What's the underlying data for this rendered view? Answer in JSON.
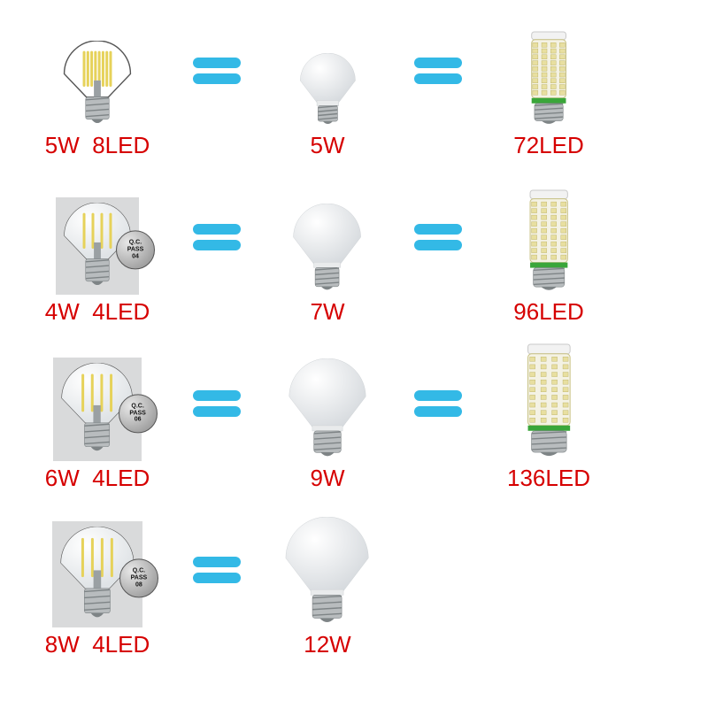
{
  "colors": {
    "label": "#d60000",
    "equals_bar": "#33b9e6",
    "bulb_glass": "#f5f6f7",
    "bulb_shadow": "#d5d9dd",
    "screw_base": "#b8bcbe",
    "screw_dark": "#7e8486",
    "filament": "#e6d25a",
    "corn_body": "#f4f2e4",
    "corn_chip": "#e8dfa0",
    "corn_base_green": "#3aa63a",
    "photo_bg": "#d9dadb"
  },
  "qc": {
    "line1": "Q.C.",
    "line2": "PASS"
  },
  "rows": [
    {
      "filament": {
        "label": "5W  8LED",
        "photo": false,
        "led_count": 8,
        "bulb_h": 120,
        "qc": null
      },
      "standard": {
        "label": "5W",
        "bulb_h": 90
      },
      "corn": {
        "label": "72LED",
        "bulb_h": 110
      }
    },
    {
      "filament": {
        "label": "4W  4LED",
        "photo": true,
        "led_count": 4,
        "bulb_h": 120,
        "qc": "04"
      },
      "standard": {
        "label": "7W",
        "bulb_h": 110
      },
      "corn": {
        "label": "96LED",
        "bulb_h": 120
      }
    },
    {
      "filament": {
        "label": "6W  4LED",
        "photo": true,
        "led_count": 4,
        "bulb_h": 128,
        "qc": "06"
      },
      "standard": {
        "label": "9W",
        "bulb_h": 125
      },
      "corn": {
        "label": "136LED",
        "bulb_h": 135
      }
    },
    {
      "filament": {
        "label": "8W  4LED",
        "photo": true,
        "led_count": 4,
        "bulb_h": 132,
        "qc": "08"
      },
      "standard": {
        "label": "12W",
        "bulb_h": 135
      },
      "corn": null
    }
  ]
}
